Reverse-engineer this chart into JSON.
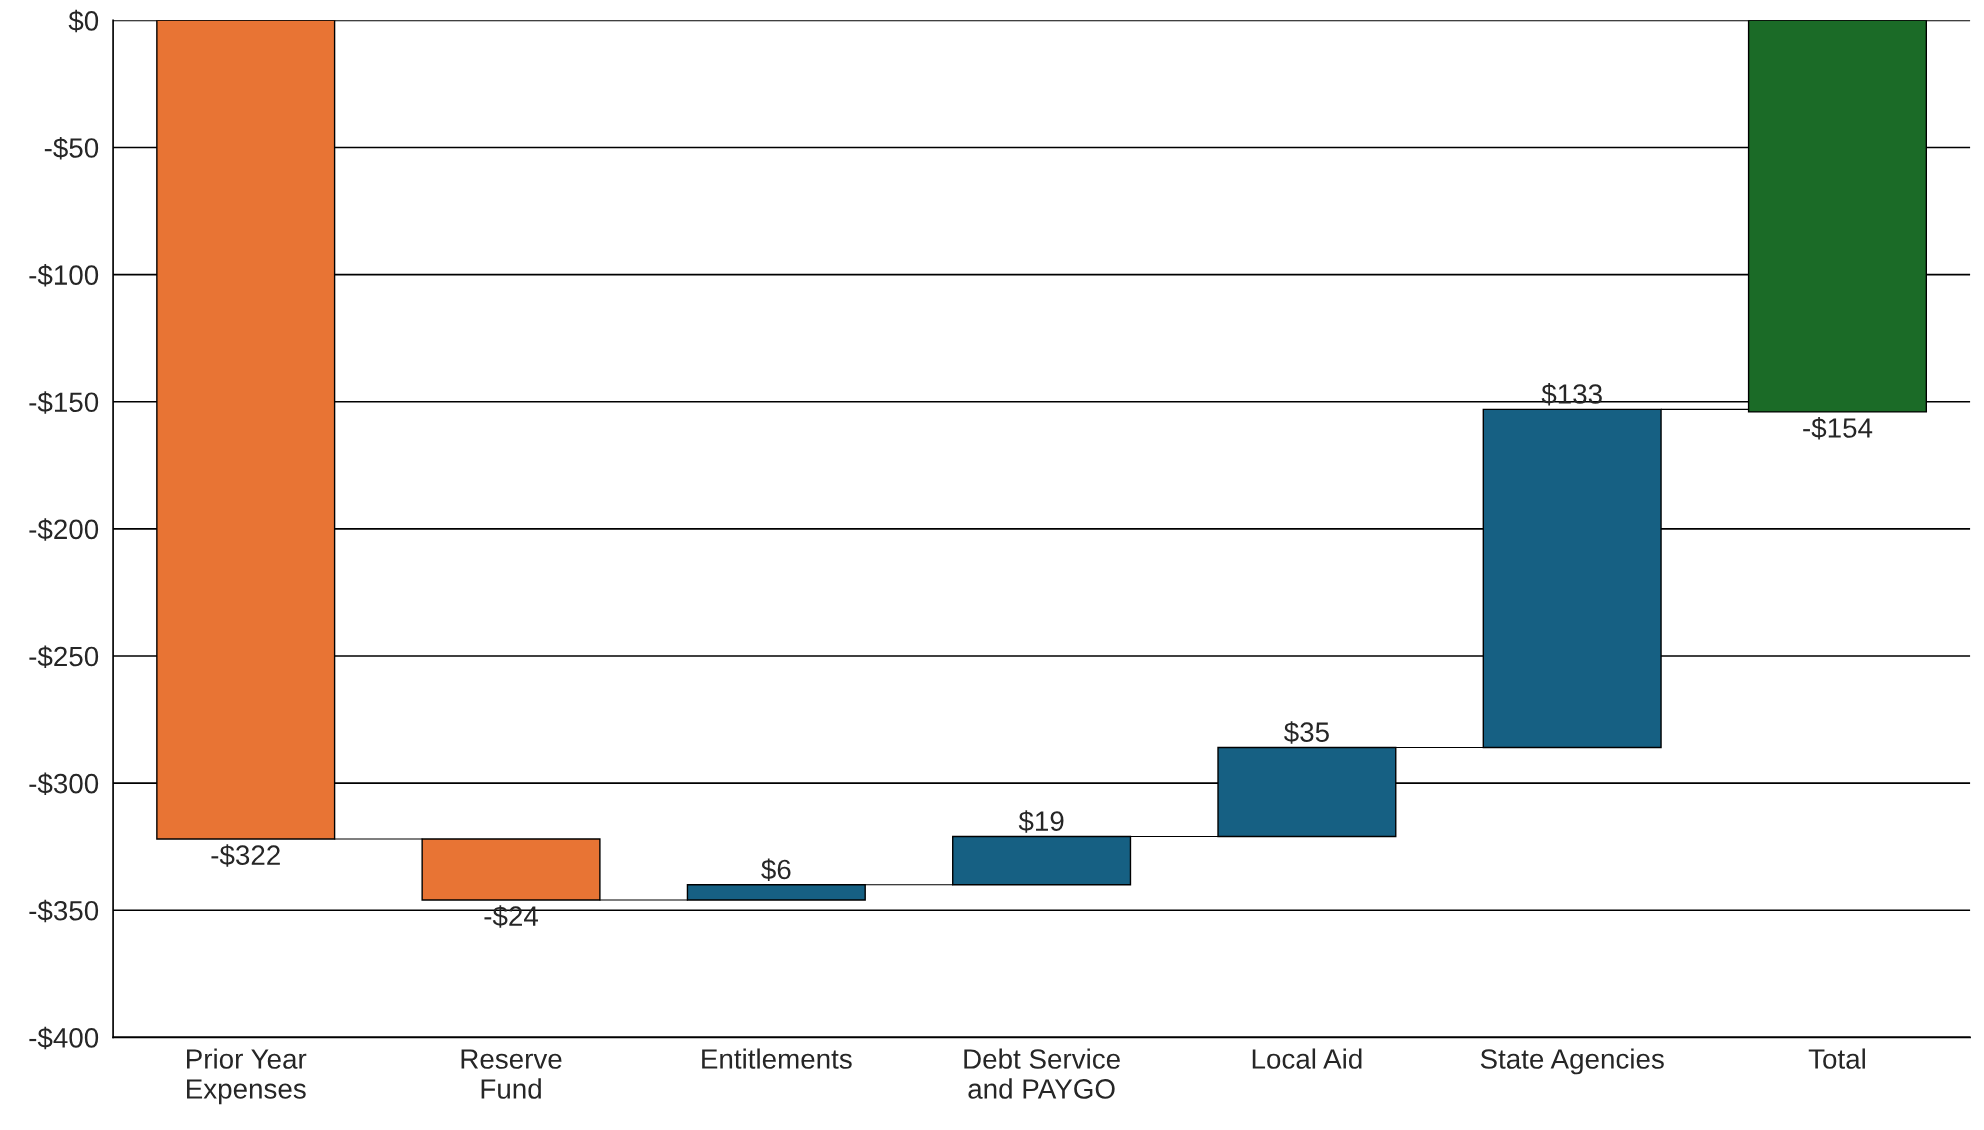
{
  "chart_data": {
    "type": "bar",
    "categories": [
      "Prior Year\nExpenses",
      "Reserve\nFund",
      "Entitlements",
      "Debt Service\nand PAYGO",
      "Local Aid",
      "State Agencies",
      "Total"
    ],
    "values": [
      -322,
      -24,
      6,
      19,
      35,
      133,
      -154
    ],
    "base": [
      0,
      -322,
      -346,
      -340,
      -321,
      -286,
      0
    ],
    "colors": [
      "#e87434",
      "#e87434",
      "#166083",
      "#166083",
      "#166083",
      "#166083",
      "#1b6b27"
    ],
    "value_labels": [
      "-$322",
      "-$24",
      "$6",
      "$19",
      "$35",
      "$133",
      "-$154"
    ],
    "ylim": [
      -400,
      0
    ],
    "yticks": [
      {
        "value": 0,
        "label": "$0"
      },
      {
        "value": -50,
        "label": "-$50"
      },
      {
        "value": -100,
        "label": "-$100"
      },
      {
        "value": -150,
        "label": "-$150"
      },
      {
        "value": -200,
        "label": "-$200"
      },
      {
        "value": -250,
        "label": "-$250"
      },
      {
        "value": -300,
        "label": "-$300"
      },
      {
        "value": -350,
        "label": "-$350"
      },
      {
        "value": -400,
        "label": "-$400"
      }
    ],
    "grid": "y",
    "legend": false
  }
}
